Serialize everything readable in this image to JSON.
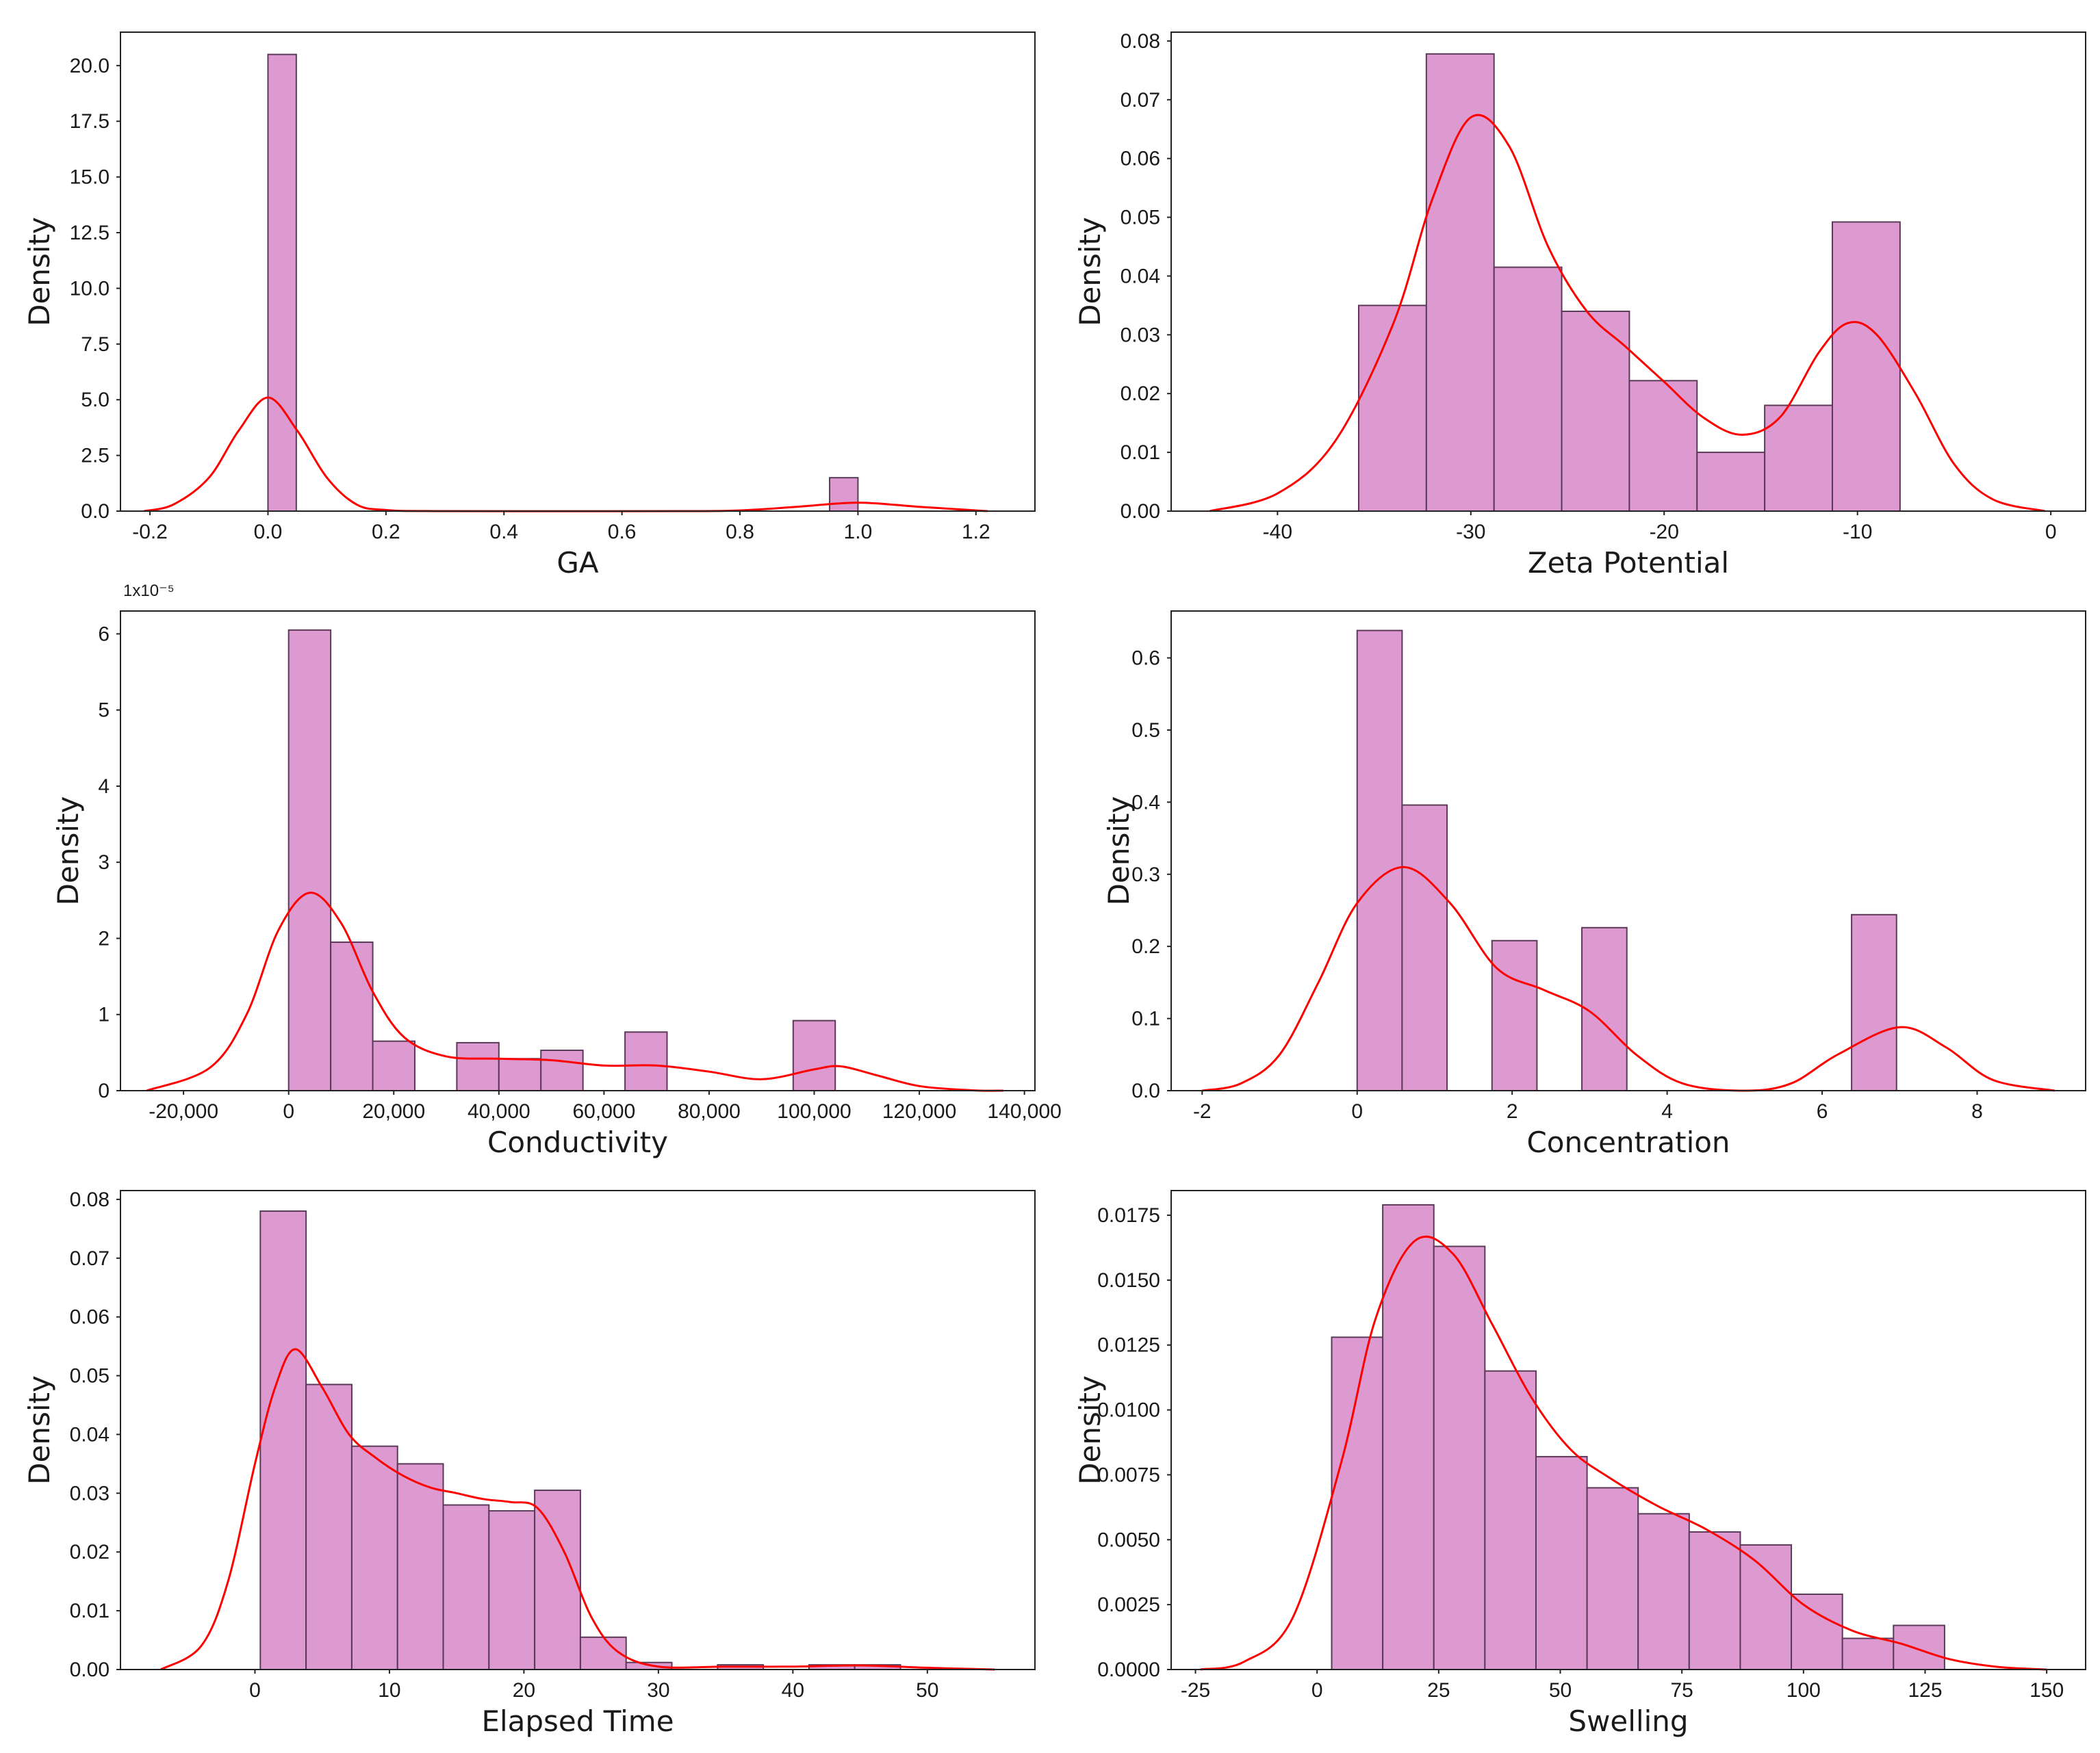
{
  "style": {
    "bar_color": "#dc9ad0",
    "bar_edge": "#5a3a58",
    "kde_color": "#ff0000"
  },
  "chart_data": [
    {
      "type": "bar",
      "xlabel": "GA",
      "ylabel": "Density",
      "xlim": [
        -0.25,
        1.3
      ],
      "ylim": [
        0,
        21.5
      ],
      "xticks": [
        -0.2,
        0.0,
        0.2,
        0.4,
        0.6,
        0.8,
        1.0,
        1.2
      ],
      "xtick_labels": [
        "-0.2",
        "0.0",
        "0.2",
        "0.4",
        "0.6",
        "0.8",
        "1.0",
        "1.2"
      ],
      "yticks": [
        0,
        2.5,
        5,
        7.5,
        10,
        12.5,
        15,
        17.5,
        20
      ],
      "ytick_labels": [
        "0.0",
        "2.5",
        "5.0",
        "7.5",
        "10.0",
        "12.5",
        "15.0",
        "17.5",
        "20.0"
      ],
      "bins": [
        [
          0.0,
          0.048,
          20.5
        ],
        [
          0.952,
          1.0,
          1.5
        ]
      ],
      "kde": [
        [
          -0.21,
          0
        ],
        [
          -0.16,
          0.3
        ],
        [
          -0.1,
          1.5
        ],
        [
          -0.05,
          3.6
        ],
        [
          0,
          5.1
        ],
        [
          0.05,
          3.6
        ],
        [
          0.1,
          1.5
        ],
        [
          0.15,
          0.3
        ],
        [
          0.2,
          0.05
        ],
        [
          0.3,
          0
        ],
        [
          0.7,
          0
        ],
        [
          0.8,
          0.03
        ],
        [
          0.9,
          0.2
        ],
        [
          1.0,
          0.38
        ],
        [
          1.1,
          0.2
        ],
        [
          1.2,
          0.03
        ],
        [
          1.22,
          0
        ]
      ]
    },
    {
      "type": "bar",
      "xlabel": "Zeta Potential",
      "ylabel": "Density",
      "xlim": [
        -45.5,
        1.8
      ],
      "ylim": [
        0,
        0.0815
      ],
      "xticks": [
        -40,
        -30,
        -20,
        -10,
        0
      ],
      "xtick_labels": [
        "-40",
        "-30",
        "-20",
        "-10",
        "0"
      ],
      "yticks": [
        0,
        0.01,
        0.02,
        0.03,
        0.04,
        0.05,
        0.06,
        0.07,
        0.08
      ],
      "ytick_labels": [
        "0.00",
        "0.01",
        "0.02",
        "0.03",
        "0.04",
        "0.05",
        "0.06",
        "0.07",
        "0.08"
      ],
      "bins": [
        [
          -35.8,
          -32.3,
          0.035
        ],
        [
          -32.3,
          -28.8,
          0.0778
        ],
        [
          -28.8,
          -25.3,
          0.0415
        ],
        [
          -25.3,
          -21.8,
          0.034
        ],
        [
          -21.8,
          -18.3,
          0.0222
        ],
        [
          -18.3,
          -14.8,
          0.01
        ],
        [
          -14.8,
          -11.3,
          0.018
        ],
        [
          -11.3,
          -7.8,
          0.0492
        ]
      ],
      "kde": [
        [
          -43.5,
          0
        ],
        [
          -40,
          0.003
        ],
        [
          -37,
          0.012
        ],
        [
          -34,
          0.032
        ],
        [
          -32,
          0.053
        ],
        [
          -30,
          0.067
        ],
        [
          -28,
          0.062
        ],
        [
          -26,
          0.045
        ],
        [
          -24,
          0.034
        ],
        [
          -22,
          0.028
        ],
        [
          -20,
          0.022
        ],
        [
          -18,
          0.016
        ],
        [
          -16,
          0.013
        ],
        [
          -14,
          0.016
        ],
        [
          -12,
          0.027
        ],
        [
          -10.5,
          0.032
        ],
        [
          -9,
          0.03
        ],
        [
          -7,
          0.02
        ],
        [
          -5,
          0.008
        ],
        [
          -3,
          0.002
        ],
        [
          -0.3,
          0
        ]
      ]
    },
    {
      "type": "bar",
      "xlabel": "Conductivity",
      "ylabel": "Density",
      "axis_offset_text": "1x10⁻⁵",
      "xlim": [
        -32000,
        142000
      ],
      "ylim": [
        0,
        6.3
      ],
      "xticks": [
        -20000,
        0,
        20000,
        40000,
        60000,
        80000,
        100000,
        120000,
        140000
      ],
      "xtick_labels": [
        "-20,000",
        "0",
        "20,000",
        "40,000",
        "60,000",
        "80,000",
        "100,000",
        "120,000",
        "140,000"
      ],
      "yticks": [
        0,
        1,
        2,
        3,
        4,
        5,
        6
      ],
      "ytick_labels": [
        "0",
        "1",
        "2",
        "3",
        "4",
        "5",
        "6"
      ],
      "bins": [
        [
          0,
          8000,
          6.05
        ],
        [
          8000,
          16000,
          1.95
        ],
        [
          16000,
          24000,
          0.65
        ],
        [
          32000,
          40000,
          0.63
        ],
        [
          40000,
          48000,
          0.42
        ],
        [
          48000,
          56000,
          0.53
        ],
        [
          64000,
          72000,
          0.77
        ],
        [
          96000,
          104000,
          0.92
        ]
      ],
      "kde": [
        [
          -27000,
          0
        ],
        [
          -15000,
          0.3
        ],
        [
          -8000,
          1
        ],
        [
          -2000,
          2.1
        ],
        [
          4000,
          2.6
        ],
        [
          10000,
          2.2
        ],
        [
          16000,
          1.3
        ],
        [
          22000,
          0.7
        ],
        [
          30000,
          0.45
        ],
        [
          40000,
          0.42
        ],
        [
          50000,
          0.4
        ],
        [
          60000,
          0.33
        ],
        [
          70000,
          0.33
        ],
        [
          80000,
          0.25
        ],
        [
          90000,
          0.15
        ],
        [
          100000,
          0.28
        ],
        [
          105000,
          0.32
        ],
        [
          112000,
          0.2
        ],
        [
          120000,
          0.06
        ],
        [
          130000,
          0.005
        ],
        [
          136000,
          0
        ]
      ]
    },
    {
      "type": "bar",
      "xlabel": "Concentration",
      "ylabel": "Density",
      "xlim": [
        -2.4,
        9.4
      ],
      "ylim": [
        0,
        0.665
      ],
      "xticks": [
        -2,
        0,
        2,
        4,
        6,
        8
      ],
      "xtick_labels": [
        "-2",
        "0",
        "2",
        "4",
        "6",
        "8"
      ],
      "yticks": [
        0,
        0.1,
        0.2,
        0.3,
        0.4,
        0.5,
        0.6
      ],
      "ytick_labels": [
        "0.0",
        "0.1",
        "0.2",
        "0.3",
        "0.4",
        "0.5",
        "0.6"
      ],
      "bins": [
        [
          0,
          0.58,
          0.638
        ],
        [
          0.58,
          1.16,
          0.396
        ],
        [
          1.74,
          2.32,
          0.208
        ],
        [
          2.9,
          3.48,
          0.226
        ],
        [
          6.38,
          6.96,
          0.244
        ]
      ],
      "kde": [
        [
          -2,
          0
        ],
        [
          -1.5,
          0.01
        ],
        [
          -1,
          0.05
        ],
        [
          -0.5,
          0.15
        ],
        [
          0,
          0.26
        ],
        [
          0.6,
          0.31
        ],
        [
          1.2,
          0.26
        ],
        [
          1.8,
          0.17
        ],
        [
          2.4,
          0.14
        ],
        [
          3,
          0.11
        ],
        [
          3.6,
          0.05
        ],
        [
          4.2,
          0.01
        ],
        [
          5,
          0
        ],
        [
          5.6,
          0.01
        ],
        [
          6.2,
          0.05
        ],
        [
          7,
          0.088
        ],
        [
          7.6,
          0.06
        ],
        [
          8.2,
          0.015
        ],
        [
          9,
          0
        ]
      ]
    },
    {
      "type": "bar",
      "xlabel": "Elapsed Time",
      "ylabel": "Density",
      "xlim": [
        -10,
        58
      ],
      "ylim": [
        0,
        0.0815
      ],
      "xticks": [
        0,
        10,
        20,
        30,
        40,
        50
      ],
      "xtick_labels": [
        "0",
        "10",
        "20",
        "30",
        "40",
        "50"
      ],
      "yticks": [
        0,
        0.01,
        0.02,
        0.03,
        0.04,
        0.05,
        0.06,
        0.07,
        0.08
      ],
      "ytick_labels": [
        "0.00",
        "0.01",
        "0.02",
        "0.03",
        "0.04",
        "0.05",
        "0.06",
        "0.07",
        "0.08"
      ],
      "bins": [
        [
          0.4,
          3.8,
          0.078
        ],
        [
          3.8,
          7.2,
          0.0485
        ],
        [
          7.2,
          10.6,
          0.038
        ],
        [
          10.6,
          14,
          0.035
        ],
        [
          14,
          17.4,
          0.028
        ],
        [
          17.4,
          20.8,
          0.027
        ],
        [
          20.8,
          24.2,
          0.0305
        ],
        [
          24.2,
          27.6,
          0.0055
        ],
        [
          27.6,
          31,
          0.0012
        ],
        [
          34.4,
          37.8,
          0.0008
        ],
        [
          41.2,
          44.6,
          0.0008
        ],
        [
          44.6,
          48,
          0.0008
        ]
      ],
      "kde": [
        [
          -7,
          0
        ],
        [
          -4,
          0.004
        ],
        [
          -2,
          0.015
        ],
        [
          0,
          0.035
        ],
        [
          1.5,
          0.048
        ],
        [
          3,
          0.0545
        ],
        [
          5,
          0.048
        ],
        [
          7,
          0.04
        ],
        [
          9,
          0.036
        ],
        [
          11,
          0.033
        ],
        [
          13,
          0.031
        ],
        [
          15,
          0.03
        ],
        [
          17,
          0.029
        ],
        [
          19,
          0.0285
        ],
        [
          21,
          0.0275
        ],
        [
          23,
          0.02
        ],
        [
          25,
          0.009
        ],
        [
          27,
          0.003
        ],
        [
          30,
          0.0005
        ],
        [
          35,
          0.0005
        ],
        [
          40,
          0.0005
        ],
        [
          45,
          0.0007
        ],
        [
          50,
          0.0003
        ],
        [
          55,
          0
        ]
      ]
    },
    {
      "type": "bar",
      "xlabel": "Swelling",
      "ylabel": "Density",
      "xlim": [
        -30,
        158
      ],
      "ylim": [
        0,
        0.01845
      ],
      "xticks": [
        -25,
        0,
        25,
        50,
        75,
        100,
        125,
        150
      ],
      "xtick_labels": [
        "-25",
        "0",
        "25",
        "50",
        "75",
        "100",
        "125",
        "150"
      ],
      "yticks": [
        0,
        0.0025,
        0.005,
        0.0075,
        0.01,
        0.0125,
        0.015,
        0.0175
      ],
      "ytick_labels": [
        "0.0000",
        "0.0025",
        "0.0050",
        "0.0075",
        "0.0100",
        "0.0125",
        "0.0150",
        "0.0175"
      ],
      "bins": [
        [
          3,
          13.5,
          0.0128
        ],
        [
          13.5,
          24,
          0.0179
        ],
        [
          24,
          34.5,
          0.0163
        ],
        [
          34.5,
          45,
          0.0115
        ],
        [
          45,
          55.5,
          0.0082
        ],
        [
          55.5,
          66,
          0.007
        ],
        [
          66,
          76.5,
          0.006
        ],
        [
          76.5,
          87,
          0.0053
        ],
        [
          87,
          97.5,
          0.0048
        ],
        [
          97.5,
          108,
          0.0029
        ],
        [
          108,
          118.5,
          0.0012
        ],
        [
          118.5,
          129,
          0.0017
        ]
      ],
      "kde": [
        [
          -24,
          0
        ],
        [
          -15,
          0.0003
        ],
        [
          -5,
          0.002
        ],
        [
          5,
          0.008
        ],
        [
          12,
          0.0135
        ],
        [
          20,
          0.0165
        ],
        [
          28,
          0.016
        ],
        [
          36,
          0.0133
        ],
        [
          44,
          0.0105
        ],
        [
          52,
          0.0085
        ],
        [
          60,
          0.0074
        ],
        [
          70,
          0.0063
        ],
        [
          80,
          0.0054
        ],
        [
          90,
          0.0042
        ],
        [
          100,
          0.0025
        ],
        [
          110,
          0.0015
        ],
        [
          120,
          0.001
        ],
        [
          130,
          0.0004
        ],
        [
          140,
          0.0001
        ],
        [
          150,
          0
        ]
      ]
    }
  ]
}
